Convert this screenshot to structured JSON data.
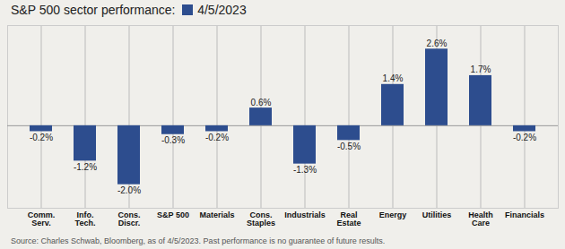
{
  "chart_data": {
    "type": "bar",
    "title": "S&P 500 sector performance:  ",
    "source": "Source: Charles Schwab, Bloomberg, as of 4/5/2023. Past performance is no guarantee of future results.",
    "categories": [
      "Comm.\nServ.",
      "Info.\nTech.",
      "Cons.\nDiscr.",
      "S&P 500",
      "Materials",
      "Cons.\nStaples",
      "Industrials",
      "Real\nEstate",
      "Energy",
      "Utilities",
      "Health\nCare",
      "Financials"
    ],
    "series": [
      {
        "name": "4/5/2023",
        "color": "#2d4d8e",
        "values": [
          -0.2,
          -1.2,
          -2.0,
          -0.3,
          -0.2,
          0.6,
          -1.3,
          -0.5,
          1.4,
          2.6,
          1.7,
          -0.2
        ],
        "value_labels": [
          "-0.2%",
          "-1.2%",
          "-2.0%",
          "-0.3%",
          "-0.2%",
          "0.6%",
          "-1.3%",
          "-0.5%",
          "1.4%",
          "2.6%",
          "1.7%",
          "-0.2%"
        ]
      }
    ],
    "ylim": [
      -2.8,
      3.4
    ],
    "grid": true,
    "legend": "top",
    "data_labels": true,
    "tick_labels": "x"
  }
}
